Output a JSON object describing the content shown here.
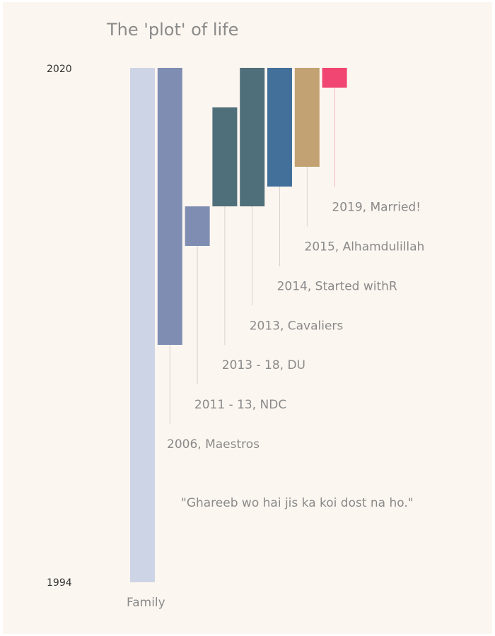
{
  "chart_data": {
    "type": "bar",
    "title": "The 'plot' of life",
    "ylim": [
      1994,
      2020
    ],
    "yticks": [
      "1994",
      "2020"
    ],
    "xlabel": "Family",
    "annotation": "\"Ghareeb wo hai jis ka koi dost na ho.\"",
    "grid": false,
    "series": [
      {
        "label": "Family",
        "start": 1994,
        "end": 2020,
        "color": "#cdd4e5"
      },
      {
        "label": "2006, Maestros",
        "start": 2006,
        "end": 2020,
        "color": "#7f8db2"
      },
      {
        "label": "2011 - 13, NDC",
        "start": 2011,
        "end": 2013,
        "color": "#7f8db2"
      },
      {
        "label": "2013 - 18, DU",
        "start": 2013,
        "end": 2018,
        "color": "#4f6f7a"
      },
      {
        "label": "2013, Cavaliers",
        "start": 2013,
        "end": 2020,
        "color": "#4f6f7a"
      },
      {
        "label": "2014, Started withR",
        "start": 2014,
        "end": 2020,
        "color": "#42709a"
      },
      {
        "label": "2015, Alhamdulillah",
        "start": 2015,
        "end": 2020,
        "color": "#c2a272"
      },
      {
        "label": "2019, Married!",
        "start": 2019,
        "end": 2020,
        "color": "#f04671"
      }
    ]
  },
  "colors": {
    "background": "#fcf6f0",
    "leader_line": "#d9d2cc",
    "highlight_leader": "#f4b9c7"
  }
}
